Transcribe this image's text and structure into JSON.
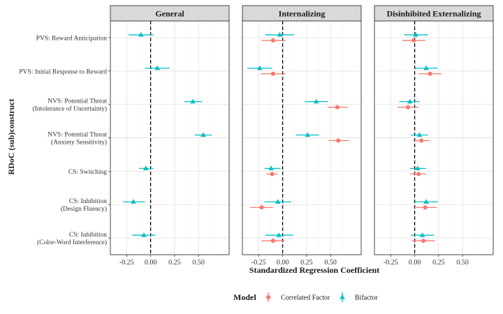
{
  "chart_data": {
    "type": "scatter",
    "subtype": "faceted dot-and-whisker (coefficient) plot",
    "xlabel": "Standardized Regression Coefficient",
    "ylabel": "RDoC (sub)construct",
    "xlim": [
      -0.42,
      0.82
    ],
    "x_ticks": [
      -0.25,
      0,
      0.25,
      0.5
    ],
    "x_tick_labels": [
      "-0.25",
      "0.00",
      "0.25",
      "0.50"
    ],
    "reference_line": {
      "x": 0,
      "style": "dashed"
    },
    "grid": true,
    "legend_position": "bottom",
    "legend": {
      "title": "Model",
      "entries": [
        {
          "name": "Correlated Factor",
          "color": "#F8766D",
          "shape": "circle"
        },
        {
          "name": "Bifactor",
          "color": "#00BFC4",
          "shape": "triangle"
        }
      ]
    },
    "categories": [
      [
        "PVS: Reward Anticipation"
      ],
      [
        "PVS: Initial Response to Reward"
      ],
      [
        "NVS: Potential Threat",
        "(Intolerance of Uncertainty)"
      ],
      [
        "NVS: Potential Threat",
        "(Anxiety Sensitivity)"
      ],
      [
        "CS: Switching"
      ],
      [
        "CS: Inhibition",
        "(Design Fluency)"
      ],
      [
        "CS: Inhibition",
        "(Color-Word Interference)"
      ]
    ],
    "panels": [
      {
        "title": "General",
        "series": [
          {
            "name": "Bifactor",
            "points": [
              {
                "y": 0,
                "est": -0.1,
                "lo": -0.23,
                "hi": 0.03
              },
              {
                "y": 1,
                "est": 0.07,
                "lo": -0.06,
                "hi": 0.2
              },
              {
                "y": 2,
                "est": 0.44,
                "lo": 0.35,
                "hi": 0.54
              },
              {
                "y": 3,
                "est": 0.55,
                "lo": 0.46,
                "hi": 0.64
              },
              {
                "y": 4,
                "est": -0.05,
                "lo": -0.12,
                "hi": 0.03
              },
              {
                "y": 5,
                "est": -0.18,
                "lo": -0.29,
                "hi": -0.06
              },
              {
                "y": 6,
                "est": -0.07,
                "lo": -0.19,
                "hi": 0.05
              }
            ]
          }
        ]
      },
      {
        "title": "Internalizing",
        "series": [
          {
            "name": "Correlated Factor",
            "points": [
              {
                "y": 0,
                "est": -0.1,
                "lo": -0.22,
                "hi": 0.03
              },
              {
                "y": 1,
                "est": -0.1,
                "lo": -0.23,
                "hi": 0.03
              },
              {
                "y": 2,
                "est": 0.57,
                "lo": 0.47,
                "hi": 0.68
              },
              {
                "y": 3,
                "est": 0.58,
                "lo": 0.48,
                "hi": 0.69
              },
              {
                "y": 4,
                "est": -0.11,
                "lo": -0.17,
                "hi": -0.05
              },
              {
                "y": 5,
                "est": -0.22,
                "lo": -0.34,
                "hi": -0.1
              },
              {
                "y": 6,
                "est": -0.1,
                "lo": -0.22,
                "hi": 0.02
              }
            ]
          },
          {
            "name": "Bifactor",
            "points": [
              {
                "y": 0,
                "est": -0.03,
                "lo": -0.18,
                "hi": 0.12
              },
              {
                "y": 1,
                "est": -0.24,
                "lo": -0.37,
                "hi": -0.11
              },
              {
                "y": 2,
                "est": 0.35,
                "lo": 0.23,
                "hi": 0.47
              },
              {
                "y": 3,
                "est": 0.26,
                "lo": 0.14,
                "hi": 0.38
              },
              {
                "y": 4,
                "est": -0.12,
                "lo": -0.19,
                "hi": -0.02
              },
              {
                "y": 5,
                "est": -0.05,
                "lo": -0.19,
                "hi": 0.09
              },
              {
                "y": 6,
                "est": -0.04,
                "lo": -0.18,
                "hi": 0.11
              }
            ]
          }
        ]
      },
      {
        "title": "Disinhibited Externalizing",
        "series": [
          {
            "name": "Correlated Factor",
            "points": [
              {
                "y": 0,
                "est": -0.01,
                "lo": -0.13,
                "hi": 0.11
              },
              {
                "y": 1,
                "est": 0.16,
                "lo": 0.04,
                "hi": 0.28
              },
              {
                "y": 2,
                "est": -0.07,
                "lo": -0.18,
                "hi": 0.04
              },
              {
                "y": 3,
                "est": 0.07,
                "lo": -0.02,
                "hi": 0.16
              },
              {
                "y": 4,
                "est": 0.04,
                "lo": -0.05,
                "hi": 0.12
              },
              {
                "y": 5,
                "est": 0.11,
                "lo": -0.01,
                "hi": 0.23
              },
              {
                "y": 6,
                "est": 0.09,
                "lo": -0.03,
                "hi": 0.21
              }
            ]
          },
          {
            "name": "Bifactor",
            "points": [
              {
                "y": 0,
                "est": 0.01,
                "lo": -0.11,
                "hi": 0.14
              },
              {
                "y": 1,
                "est": 0.12,
                "lo": 0.0,
                "hi": 0.24
              },
              {
                "y": 2,
                "est": -0.05,
                "lo": -0.16,
                "hi": 0.05
              },
              {
                "y": 3,
                "est": 0.05,
                "lo": -0.04,
                "hi": 0.14
              },
              {
                "y": 4,
                "est": 0.03,
                "lo": -0.05,
                "hi": 0.12
              },
              {
                "y": 5,
                "est": 0.12,
                "lo": 0.0,
                "hi": 0.24
              },
              {
                "y": 6,
                "est": 0.08,
                "lo": -0.04,
                "hi": 0.2
              }
            ]
          }
        ]
      }
    ]
  }
}
